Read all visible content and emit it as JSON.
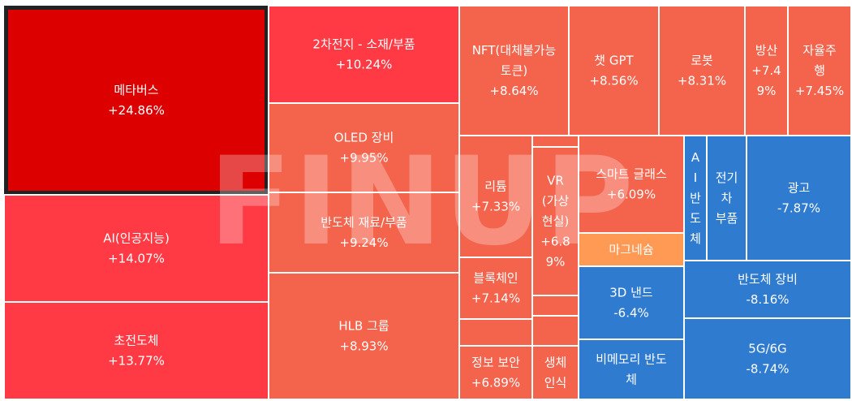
{
  "watermark": "FINUP",
  "chart_data": {
    "type": "treemap",
    "title": "",
    "colors": {
      "strong_up": "#dd0000",
      "up": "#ff3a44",
      "mild_up": "#f4634c",
      "flat": "#ff9a55",
      "down": "#2e7bcf",
      "border": "#ffffff",
      "highlight_border": "#222222"
    },
    "tiles": [
      {
        "name": "메타버스",
        "change": "+24.86%",
        "value": 24.86,
        "tone": "strong_up",
        "lines": [
          "메타버스",
          "+24.86%"
        ],
        "selected": true
      },
      {
        "name": "AI(인공지능)",
        "change": "+14.07%",
        "value": 14.07,
        "tone": "up",
        "lines": [
          "AI(인공지능)",
          "+14.07%"
        ]
      },
      {
        "name": "초전도체",
        "change": "+13.77%",
        "value": 13.77,
        "tone": "up",
        "lines": [
          "초전도체",
          "+13.77%"
        ]
      },
      {
        "name": "2차전지 - 소재/부품",
        "change": "+10.24%",
        "value": 10.24,
        "tone": "up",
        "lines": [
          "2차전지 - 소재/부품",
          "+10.24%"
        ]
      },
      {
        "name": "OLED 장비",
        "change": "+9.95%",
        "value": 9.95,
        "tone": "mild_up",
        "lines": [
          "OLED 장비",
          "+9.95%"
        ]
      },
      {
        "name": "반도체 재료/부품",
        "change": "+9.24%",
        "value": 9.24,
        "tone": "mild_up",
        "lines": [
          "반도체 재료/부품",
          "+9.24%"
        ]
      },
      {
        "name": "HLB 그룹",
        "change": "+8.93%",
        "value": 8.93,
        "tone": "mild_up",
        "lines": [
          "HLB 그룹",
          "+8.93%"
        ]
      },
      {
        "name": "NFT(대체불가능토큰)",
        "change": "+8.64%",
        "value": 8.64,
        "tone": "mild_up",
        "lines": [
          "NFT(대체불가능",
          "토큰)",
          "+8.64%"
        ]
      },
      {
        "name": "챗 GPT",
        "change": "+8.56%",
        "value": 8.56,
        "tone": "mild_up",
        "lines": [
          "챗 GPT",
          "+8.56%"
        ]
      },
      {
        "name": "로봇",
        "change": "+8.31%",
        "value": 8.31,
        "tone": "mild_up",
        "lines": [
          "로봇",
          "+8.31%"
        ]
      },
      {
        "name": "방산",
        "change": "+7.49%",
        "value": 7.49,
        "tone": "mild_up",
        "lines": [
          "방산",
          "+7.4",
          "9%"
        ]
      },
      {
        "name": "자율주행",
        "change": "+7.45%",
        "value": 7.45,
        "tone": "mild_up",
        "lines": [
          "자율주",
          "행",
          "+7.45%"
        ]
      },
      {
        "name": "리튬",
        "change": "+7.33%",
        "value": 7.33,
        "tone": "mild_up",
        "lines": [
          "리튬",
          "+7.33%"
        ]
      },
      {
        "name": "VR(가상현실)",
        "change": "+6.89%",
        "value": 6.89,
        "tone": "mild_up",
        "lines": [
          "VR",
          "(가상",
          "현실)",
          "+6.8",
          "9%"
        ]
      },
      {
        "name": "블록체인",
        "change": "+7.14%",
        "value": 7.14,
        "tone": "mild_up",
        "lines": [
          "블록체인",
          "+7.14%"
        ]
      },
      {
        "name": "정보 보안",
        "change": "+6.89%",
        "value": 6.89,
        "tone": "mild_up",
        "lines": [
          "정보 보안",
          "+6.89%"
        ]
      },
      {
        "name": "생체인식",
        "change": "",
        "value": null,
        "tone": "mild_up",
        "lines": [
          "생체",
          "인식"
        ]
      },
      {
        "name": "스마트 글래스",
        "change": "+6.09%",
        "value": 6.09,
        "tone": "mild_up",
        "lines": [
          "스마트 글래스",
          "+6.09%"
        ]
      },
      {
        "name": "마그네슘",
        "change": "",
        "value": null,
        "tone": "flat",
        "lines": [
          "마그네슘"
        ]
      },
      {
        "name": "AI 반도체",
        "change": "",
        "value": null,
        "tone": "down",
        "lines": [
          "A",
          "I",
          "반",
          "도",
          "체"
        ]
      },
      {
        "name": "전기차 부품",
        "change": "",
        "value": null,
        "tone": "down",
        "lines": [
          "전기",
          "차",
          "부품"
        ]
      },
      {
        "name": "광고",
        "change": "-7.87%",
        "value": -7.87,
        "tone": "down",
        "lines": [
          "광고",
          "-7.87%"
        ]
      },
      {
        "name": "3D 낸드",
        "change": "-6.4%",
        "value": -6.4,
        "tone": "down",
        "lines": [
          "3D 낸드",
          "-6.4%"
        ]
      },
      {
        "name": "반도체 장비",
        "change": "-8.16%",
        "value": -8.16,
        "tone": "down",
        "lines": [
          "반도체 장비",
          "-8.16%"
        ]
      },
      {
        "name": "비메모리 반도체",
        "change": "",
        "value": null,
        "tone": "down",
        "lines": [
          "비메모리 반도",
          "체"
        ]
      },
      {
        "name": "5G/6G",
        "change": "-8.74%",
        "value": -8.74,
        "tone": "down",
        "lines": [
          "5G/6G",
          "-8.74%"
        ]
      },
      {
        "name": "",
        "change": "",
        "value": null,
        "tone": "mild_up",
        "lines": []
      },
      {
        "name": "",
        "change": "",
        "value": null,
        "tone": "mild_up",
        "lines": []
      },
      {
        "name": "",
        "change": "",
        "value": null,
        "tone": "mild_up",
        "lines": []
      },
      {
        "name": "",
        "change": "",
        "value": null,
        "tone": "mild_up",
        "lines": []
      },
      {
        "name": "",
        "change": "",
        "value": null,
        "tone": "mild_up",
        "lines": []
      },
      {
        "name": "",
        "change": "",
        "value": null,
        "tone": "mild_up",
        "lines": []
      }
    ]
  }
}
